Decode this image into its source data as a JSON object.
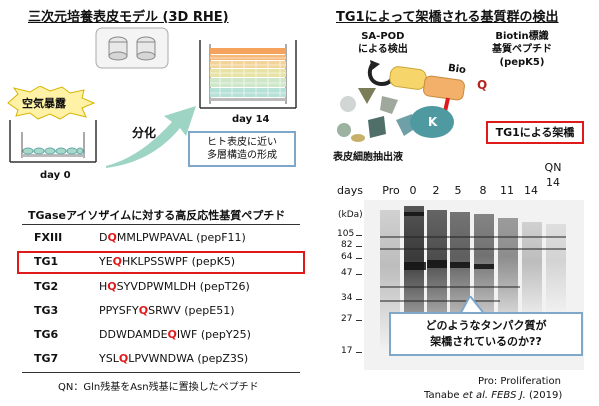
{
  "left_title": "三次元培養表皮モデル (3D RHE)",
  "right_title": "TG1によって架橋される基質群の検出",
  "air_exposure": "空気暴露",
  "differentiation": "分化",
  "day0": "day 0",
  "day14": "day 14",
  "rhe_callout": [
    "ヒト表皮に近い",
    "多層構造の形成"
  ],
  "sa_pod": [
    "SA-POD",
    "による検出"
  ],
  "biotin": [
    "Biotin標識",
    "基質ペプチド",
    "(pepK5)"
  ],
  "bio_tag": "Bio",
  "q_tag": "Q",
  "k_tag": "K",
  "crosslink_label": "TG1による架橋",
  "extract_label": "表皮細胞抽出液",
  "peptide_table_title": "TGaseアイソザイムに対する高反応性基質ペプチド",
  "peptides": [
    {
      "name": "FXIII",
      "pre": "D",
      "q": "Q",
      "post": "MMLPWPAVAL (pepF11)"
    },
    {
      "name": "TG1",
      "pre": "YE",
      "q": "Q",
      "post": "HKLPSSWPF (pepK5)"
    },
    {
      "name": "TG2",
      "pre": "H",
      "q": "Q",
      "post": "SYVDPWMLDH (pepT26)"
    },
    {
      "name": "TG3",
      "pre": "PPYSFY",
      "q": "Q",
      "post": "SRWV (pepE51)"
    },
    {
      "name": "TG6",
      "pre": "DDWDAMDE",
      "q": "Q",
      "post": "IWF (pepY25)"
    },
    {
      "name": "TG7",
      "pre": "YSL",
      "q": "Q",
      "post": "LPVWNDWA (pepZ3S)"
    }
  ],
  "qn_note": "QN：Gln残基をAsn残基に置換したペプチド",
  "gel": {
    "days_label": "days",
    "lanes": [
      "Pro",
      "0",
      "2",
      "5",
      "8",
      "11",
      "14",
      "QN\n14"
    ],
    "kda_label": "(kDa)",
    "markers": [
      "105",
      "82",
      "64",
      "47",
      "34",
      "27",
      "17"
    ]
  },
  "gel_callout": [
    "どのようなタンパク質が",
    "架橋されているのか??"
  ],
  "footnote": "Pro: Proliferation",
  "citation_pre": "Tanabe ",
  "citation_italic": "et al. FEBS J.",
  "citation_post": " (2019)",
  "colors": {
    "red": "#e01a1a",
    "callout_border": "#7ea7c9",
    "arrow": "#7fbfae"
  }
}
